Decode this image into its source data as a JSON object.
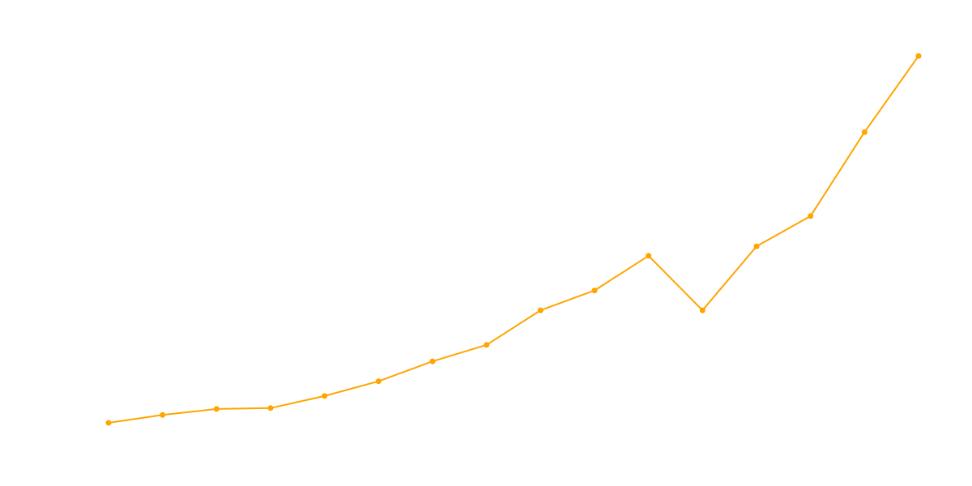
{
  "chart_data": {
    "type": "line",
    "series": [
      {
        "values": [
          3.0,
          3.9,
          4.6,
          4.7,
          6.1,
          7.8,
          10.1,
          12.0,
          16.0,
          18.3,
          22.3,
          16.0,
          23.4,
          26.9,
          36.6,
          45.4
        ]
      }
    ],
    "ylim": [
      0,
      50
    ],
    "grid": false,
    "colors": {
      "line": "#FFA500",
      "background": "#FFFFFF"
    }
  }
}
